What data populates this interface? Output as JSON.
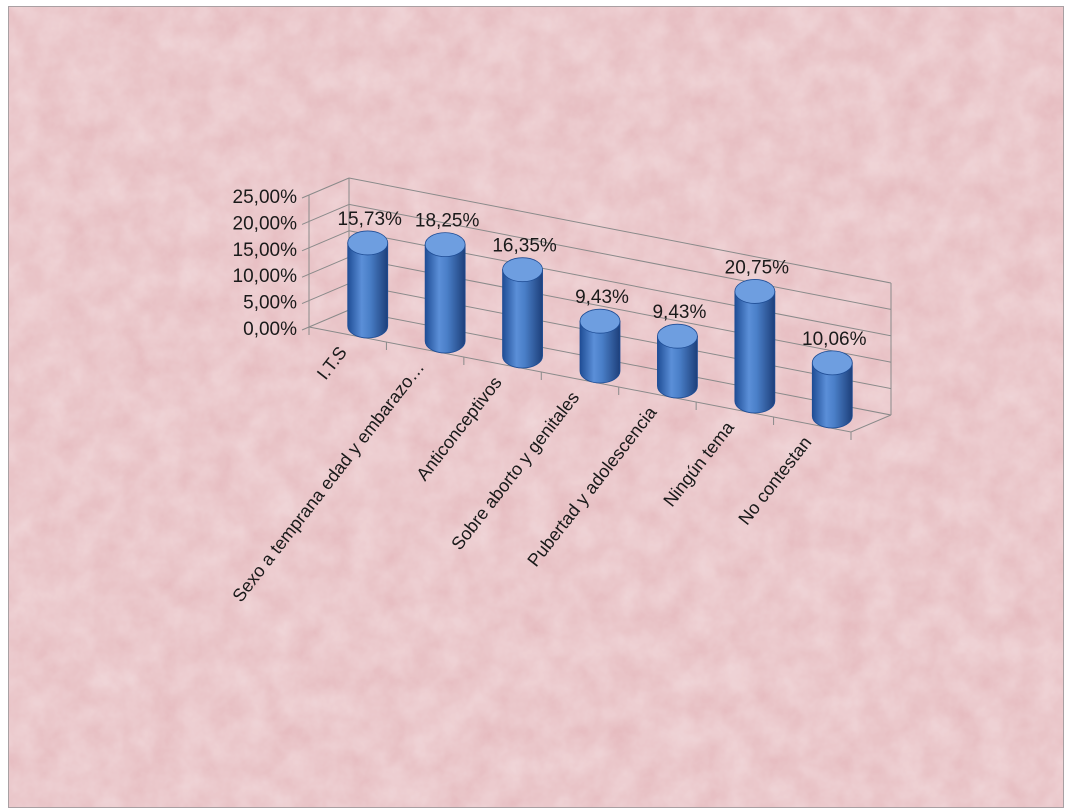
{
  "chart_data": {
    "type": "bar",
    "style": "3d-cylinder",
    "categories": [
      "I.T.S",
      "Sexo a temprana edad y embarazo…",
      "Anticonceptivos",
      "Sobre aborto y  genitales",
      "Pubertad y adolescencia",
      "Ningún tema",
      "No contestan"
    ],
    "values": [
      15.73,
      18.25,
      16.35,
      9.43,
      9.43,
      20.75,
      10.06
    ],
    "data_labels": [
      "15,73%",
      "18,25%",
      "16,35%",
      "9,43%",
      "9,43%",
      "20,75%",
      "10,06%"
    ],
    "y_ticks": [
      "0,00%",
      "5,00%",
      "10,00%",
      "15,00%",
      "20,00%",
      "25,00%"
    ],
    "ylim": [
      0,
      25
    ],
    "grid": true,
    "legend": "none",
    "colors": {
      "bar": "#4a7fc8",
      "bar_dark": "#1f4d95",
      "bar_top": "#6e9ee0",
      "gridline": "#8a8a8a",
      "background": "#e6bcc0"
    }
  }
}
